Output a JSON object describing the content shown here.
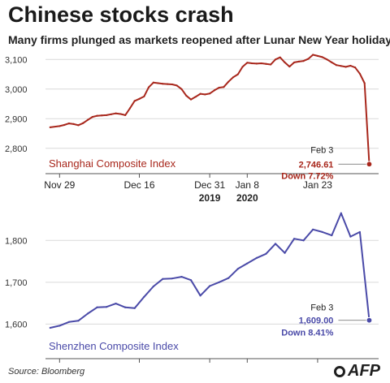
{
  "title": "Chinese stocks crash",
  "subtitle": "Many firms plunged as markets reopened after Lunar New Year holiday",
  "source": "Source: Bloomberg",
  "logo_text": "AFP",
  "x_ticks": [
    {
      "label": "Nov 29",
      "x": 0
    },
    {
      "label": "Dec 16",
      "x": 17
    },
    {
      "label": "Dec 31",
      "x": 32
    },
    {
      "label": "Jan 8",
      "x": 40
    },
    {
      "label": "Jan 23",
      "x": 55
    }
  ],
  "x_year_labels": [
    {
      "label": "2019",
      "x": 32
    },
    {
      "label": "2020",
      "x": 40
    }
  ],
  "x_range": [
    -3,
    68
  ],
  "chart_data": [
    {
      "type": "line",
      "name": "Shanghai Composite Index",
      "color": "#a8271c",
      "x_unit": "days since Nov 29, 2019",
      "ylim": [
        2720,
        3120
      ],
      "y_ticks": [
        2800,
        2900,
        3000,
        3100
      ],
      "y_tick_labels": [
        "2,800",
        "2,900",
        "3,000",
        "3,100"
      ],
      "x": [
        -2,
        0,
        1,
        2,
        3,
        4,
        5,
        6,
        7,
        8,
        9,
        10,
        11,
        12,
        13,
        14,
        15,
        16,
        17,
        18,
        19,
        20,
        21,
        22,
        23,
        24,
        25,
        26,
        27,
        28,
        29,
        30,
        31,
        32,
        33,
        34,
        35,
        36,
        37,
        38,
        39,
        40,
        41,
        42,
        43,
        44,
        45,
        46,
        47,
        48,
        49,
        50,
        51,
        52,
        53,
        54,
        55,
        56,
        57,
        58,
        59,
        60,
        61,
        62,
        63,
        64,
        65,
        66
      ],
      "y": [
        2871,
        2875,
        2879,
        2884,
        2882,
        2878,
        2885,
        2896,
        2906,
        2910,
        2911,
        2912,
        2915,
        2918,
        2916,
        2912,
        2935,
        2960,
        2967,
        2975,
        3006,
        3022,
        3020,
        3018,
        3017,
        3016,
        3012,
        3000,
        2978,
        2965,
        2974,
        2984,
        2982,
        2985,
        2996,
        3005,
        3007,
        3025,
        3040,
        3050,
        3075,
        3089,
        3087,
        3086,
        3087,
        3085,
        3083,
        3100,
        3107,
        3090,
        3076,
        3090,
        3093,
        3095,
        3102,
        3116,
        3112,
        3108,
        3100,
        3090,
        3081,
        3078,
        3075,
        3079,
        3073,
        3052,
        3020,
        2746.61
      ],
      "end_label": {
        "date": "Feb 3",
        "value": "2,746.61",
        "change": "Down 7.72%"
      }
    },
    {
      "type": "line",
      "name": "Shenzhen Composite Index",
      "color": "#4a4aa8",
      "x_unit": "days since Nov 29, 2019",
      "ylim": [
        1560,
        1880
      ],
      "y_ticks": [
        1600,
        1700,
        1800
      ],
      "y_tick_labels": [
        "1,600",
        "1,700",
        "1,800"
      ],
      "x": [
        -2,
        0,
        2,
        4,
        6,
        8,
        10,
        12,
        14,
        16,
        18,
        20,
        22,
        24,
        26,
        28,
        30,
        32,
        34,
        36,
        38,
        40,
        42,
        44,
        46,
        48,
        50,
        52,
        54,
        56,
        58,
        60,
        62,
        64,
        66
      ],
      "y": [
        1591,
        1596,
        1605,
        1608,
        1625,
        1640,
        1641,
        1649,
        1640,
        1638,
        1665,
        1690,
        1708,
        1709,
        1713,
        1705,
        1668,
        1691,
        1700,
        1710,
        1732,
        1745,
        1758,
        1768,
        1792,
        1770,
        1804,
        1800,
        1826,
        1820,
        1812,
        1865,
        1809,
        1820,
        1609.0
      ],
      "end_label": {
        "date": "Feb 3",
        "value": "1,609.00",
        "change": "Down 8.41%"
      }
    }
  ]
}
